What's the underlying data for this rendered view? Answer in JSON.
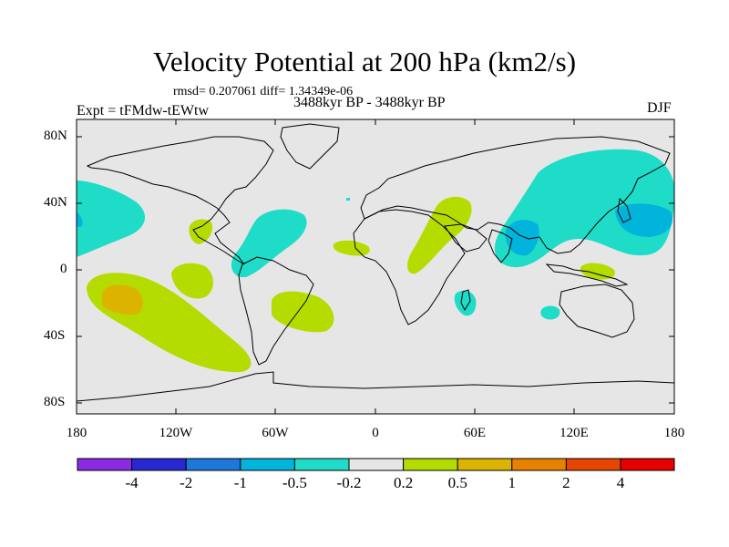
{
  "title": "Velocity Potential at 200 hPa (km2/s)",
  "stats": "rmsd= 0.207061  diff= 1.34349e-06",
  "expt": "Expt = tFMdw-tEWtw",
  "period": "3488kyr BP - 3488kyr BP",
  "season": "DJF",
  "map": {
    "y_ticks": [
      "80N",
      "40N",
      "0",
      "40S",
      "80S"
    ],
    "x_ticks": [
      "180",
      "120W",
      "60W",
      "0",
      "60E",
      "120E",
      "180"
    ],
    "background_color": "#e6e6e6"
  },
  "colorbar": {
    "colors": [
      "#8a2be2",
      "#2828d2",
      "#1e78dc",
      "#00b4dc",
      "#1edcc8",
      "#e6e6e6",
      "#b4dc00",
      "#dcb400",
      "#e68200",
      "#e64600",
      "#e60000"
    ],
    "labels": [
      "-4",
      "-2",
      "-1",
      "-0.5",
      "-0.2",
      "0.2",
      "0.5",
      "1",
      "2",
      "4"
    ]
  }
}
